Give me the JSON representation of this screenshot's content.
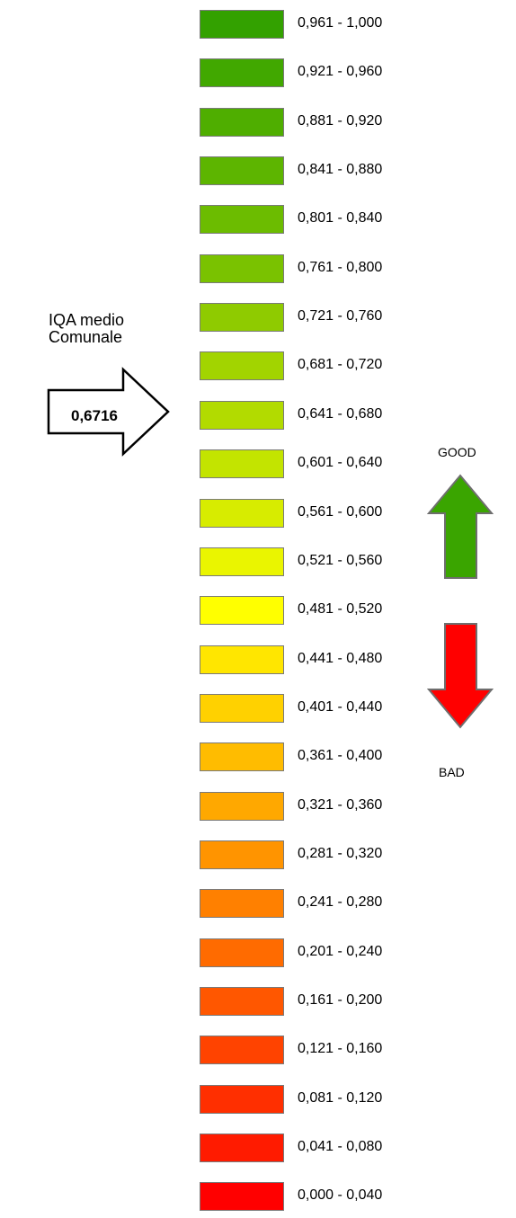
{
  "legend": [
    {
      "range": "0,961 - 1,000",
      "color": "#33a100"
    },
    {
      "range": "0,921 - 0,960",
      "color": "#41a800"
    },
    {
      "range": "0,881 - 0,920",
      "color": "#4fae00"
    },
    {
      "range": "0,841 - 0,880",
      "color": "#5db500"
    },
    {
      "range": "0,801 - 0,840",
      "color": "#6cbc00"
    },
    {
      "range": "0,761 - 0,800",
      "color": "#7ac200"
    },
    {
      "range": "0,721 - 0,760",
      "color": "#8fcb00"
    },
    {
      "range": "0,681 - 0,720",
      "color": "#a2d400"
    },
    {
      "range": "0,641 - 0,680",
      "color": "#b2db00"
    },
    {
      "range": "0,601 - 0,640",
      "color": "#c3e400"
    },
    {
      "range": "0,561 - 0,600",
      "color": "#d7ec00"
    },
    {
      "range": "0,521 - 0,560",
      "color": "#eaf500"
    },
    {
      "range": "0,481 - 0,520",
      "color": "#ffff00"
    },
    {
      "range": "0,441 - 0,480",
      "color": "#ffe600"
    },
    {
      "range": "0,401 - 0,440",
      "color": "#ffd100"
    },
    {
      "range": "0,361 - 0,400",
      "color": "#ffbc00"
    },
    {
      "range": "0,321 - 0,360",
      "color": "#ffa800"
    },
    {
      "range": "0,281 - 0,320",
      "color": "#ff9400"
    },
    {
      "range": "0,241 - 0,280",
      "color": "#ff8000"
    },
    {
      "range": "0,201 - 0,240",
      "color": "#ff6b00"
    },
    {
      "range": "0,161 - 0,200",
      "color": "#ff5700"
    },
    {
      "range": "0,121 - 0,160",
      "color": "#ff4300"
    },
    {
      "range": "0,081 - 0,120",
      "color": "#ff2f00"
    },
    {
      "range": "0,041 - 0,080",
      "color": "#ff1b00"
    },
    {
      "range": "0,000 - 0,040",
      "color": "#ff0000"
    }
  ],
  "current": {
    "title_line1": "IQA medio",
    "title_line2": "Comunale",
    "value": "0,6716"
  },
  "direction": {
    "good_label": "GOOD",
    "bad_label": "BAD",
    "good_color": "#3aa500",
    "bad_color": "#ff0000"
  }
}
